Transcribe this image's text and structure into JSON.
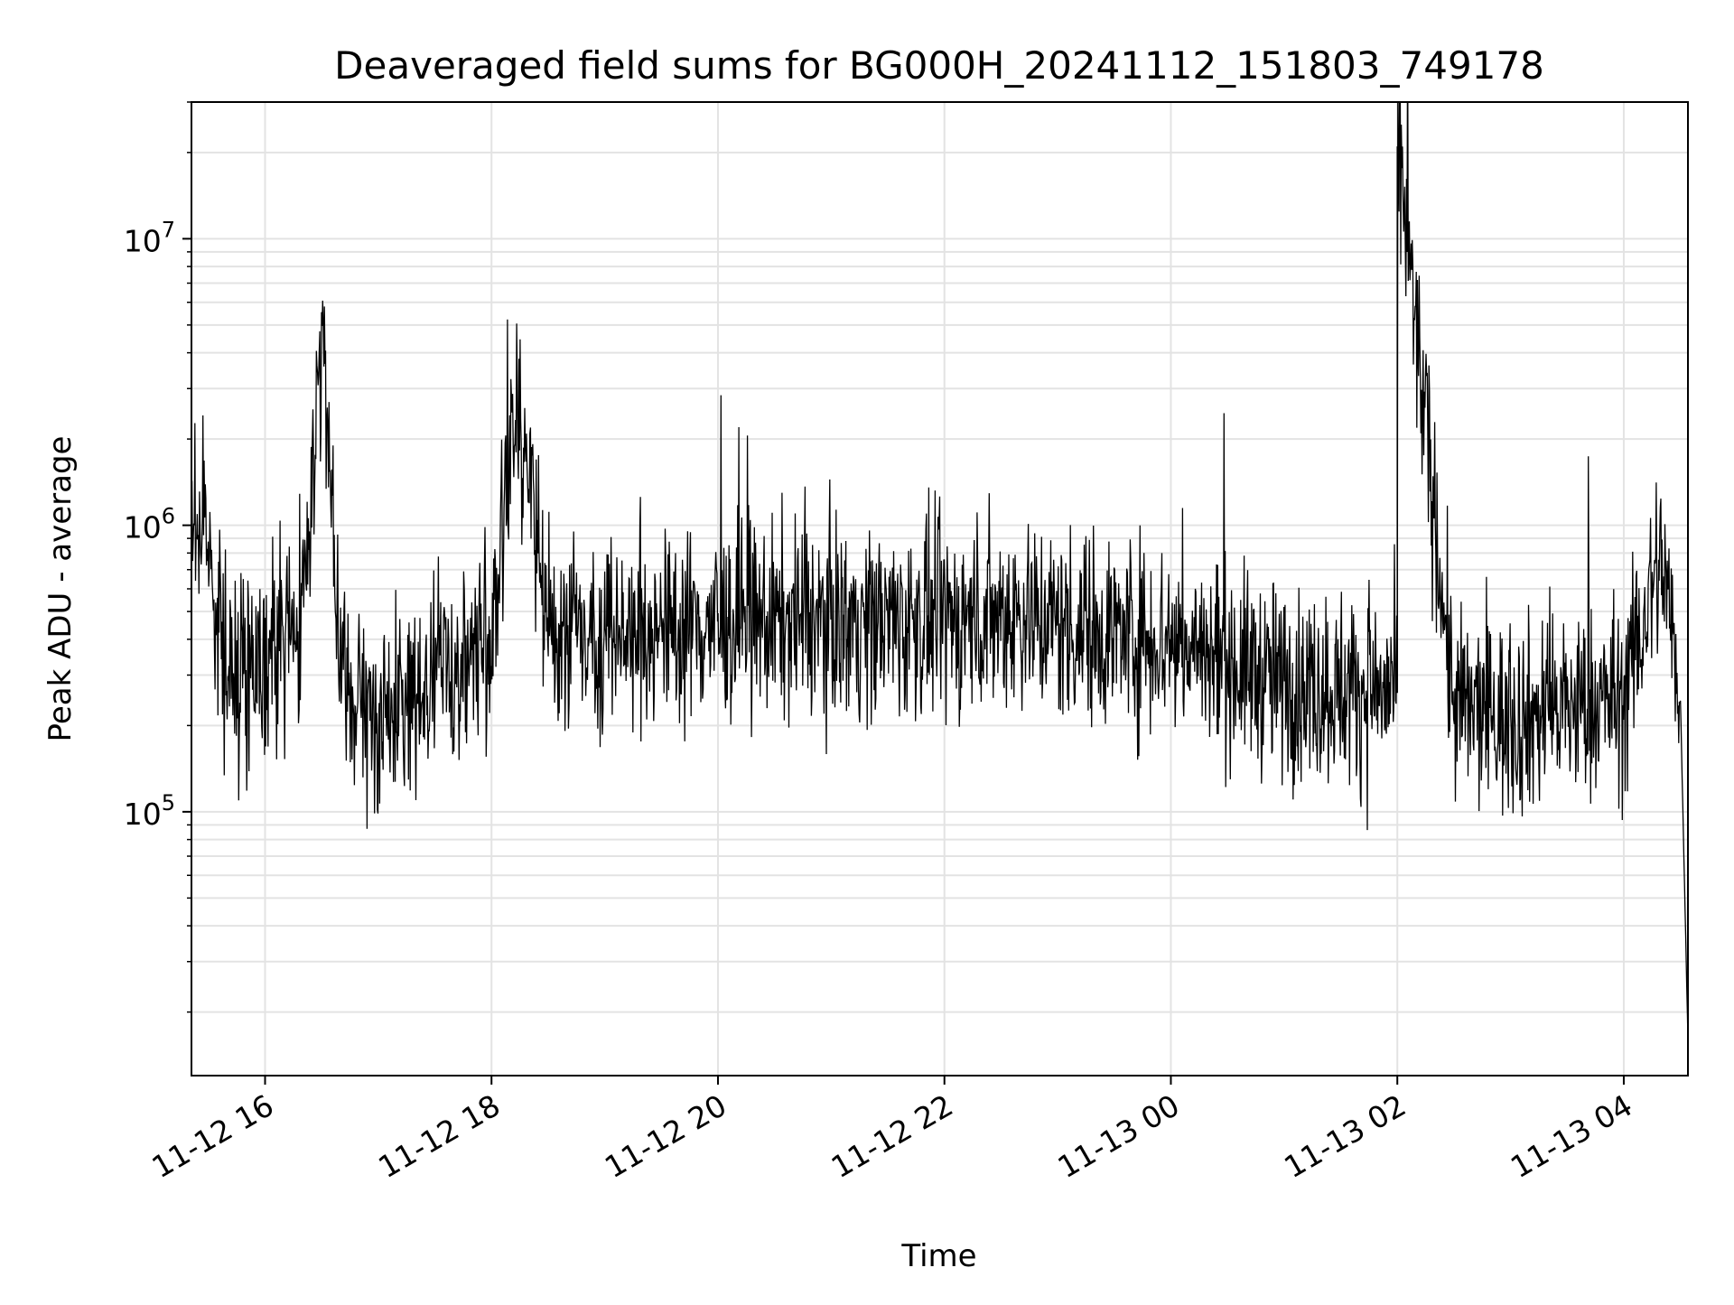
{
  "chart_data": {
    "type": "line",
    "title": "Deaveraged field sums for BG000H_20241112_151803_749178",
    "xlabel": "Time",
    "ylabel": "Peak ADU - average",
    "x_axis": {
      "type": "time",
      "range": [
        "2024-11-12 15:21",
        "2024-11-13 04:34"
      ],
      "ticks": [
        {
          "t": "2024-11-12 16:00",
          "label": "11-12 16"
        },
        {
          "t": "2024-11-12 18:00",
          "label": "11-12 18"
        },
        {
          "t": "2024-11-12 20:00",
          "label": "11-12 20"
        },
        {
          "t": "2024-11-12 22:00",
          "label": "11-12 22"
        },
        {
          "t": "2024-11-13 00:00",
          "label": "11-13 00"
        },
        {
          "t": "2024-11-13 02:00",
          "label": "11-13 02"
        },
        {
          "t": "2024-11-13 04:00",
          "label": "11-13 04"
        }
      ]
    },
    "y_axis": {
      "scale": "log",
      "range": [
        12000,
        30000000
      ],
      "major_ticks": [
        {
          "value": 100000,
          "base": "10",
          "exp": "5"
        },
        {
          "value": 1000000,
          "base": "10",
          "exp": "6"
        },
        {
          "value": 10000000,
          "base": "10",
          "exp": "7"
        }
      ]
    },
    "grid": true,
    "legend": "none",
    "line_color": "#000000",
    "series": [
      {
        "values": [
          {
            "t": "2024-11-12 15:21",
            "y": 1100000
          },
          {
            "t": "2024-11-12 15:30",
            "y": 900000
          },
          {
            "t": "2024-11-12 15:40",
            "y": 300000
          },
          {
            "t": "2024-11-12 16:00",
            "y": 350000
          },
          {
            "t": "2024-11-12 16:20",
            "y": 450000
          },
          {
            "t": "2024-11-12 16:30",
            "y": 5500000
          },
          {
            "t": "2024-11-12 16:40",
            "y": 250000
          },
          {
            "t": "2024-11-12 17:00",
            "y": 200000
          },
          {
            "t": "2024-11-12 17:30",
            "y": 300000
          },
          {
            "t": "2024-11-12 18:00",
            "y": 400000
          },
          {
            "t": "2024-11-12 18:13",
            "y": 2900000
          },
          {
            "t": "2024-11-12 18:30",
            "y": 420000
          },
          {
            "t": "2024-11-12 19:00",
            "y": 430000
          },
          {
            "t": "2024-11-12 20:00",
            "y": 450000
          },
          {
            "t": "2024-11-12 21:00",
            "y": 470000
          },
          {
            "t": "2024-11-12 22:00",
            "y": 460000
          },
          {
            "t": "2024-11-12 22:40",
            "y": 500000
          },
          {
            "t": "2024-11-12 23:00",
            "y": 450000
          },
          {
            "t": "2024-11-13 00:00",
            "y": 400000
          },
          {
            "t": "2024-11-13 01:00",
            "y": 280000
          },
          {
            "t": "2024-11-13 02:00",
            "y": 260000
          },
          {
            "t": "2024-11-13 02:00",
            "y": 21000000
          },
          {
            "t": "2024-11-13 02:30",
            "y": 230000
          },
          {
            "t": "2024-11-13 03:00",
            "y": 210000
          },
          {
            "t": "2024-11-13 04:00",
            "y": 250000
          },
          {
            "t": "2024-11-13 04:20",
            "y": 800000
          },
          {
            "t": "2024-11-13 04:30",
            "y": 250000
          },
          {
            "t": "2024-11-13 04:34",
            "y": 16000
          }
        ]
      }
    ]
  }
}
